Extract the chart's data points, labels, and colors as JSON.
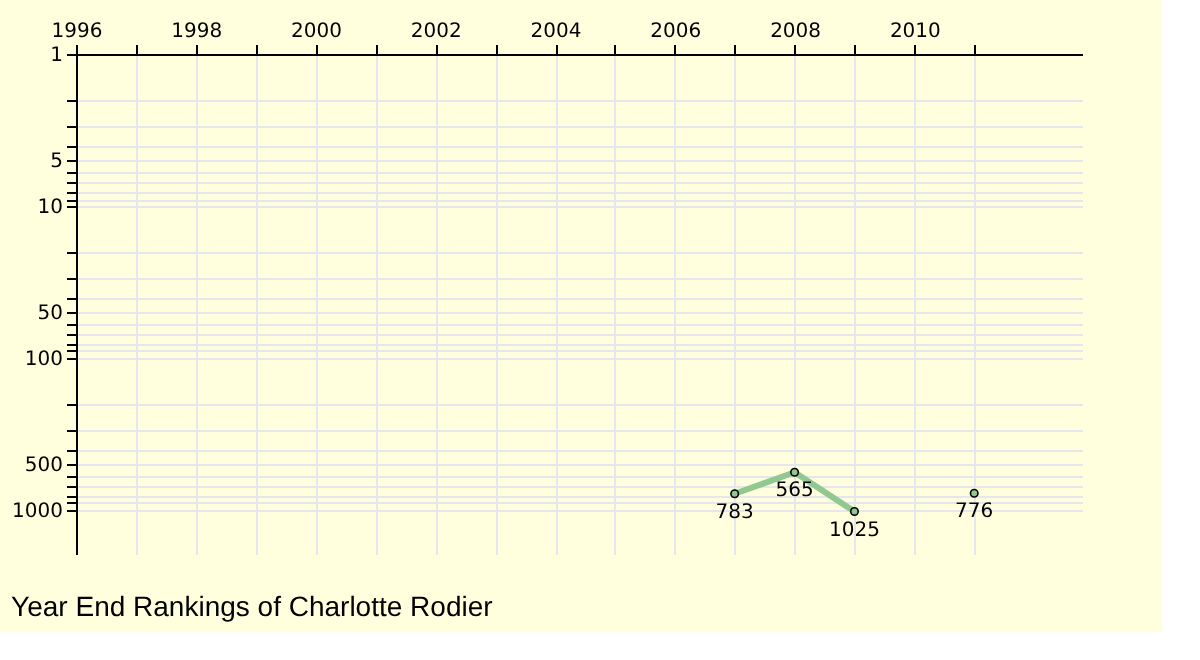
{
  "chart_data": {
    "type": "line",
    "title": "Year End Rankings of  Charlotte Rodier",
    "x": [
      2007,
      2008,
      2009,
      2010,
      2011
    ],
    "series": [
      {
        "color": "#90c890",
        "values": [
          783,
          565,
          1025,
          null,
          776
        ]
      }
    ],
    "xlim": [
      1996,
      2012.8
    ],
    "xticks": [
      1996,
      {
        "value": 1997,
        "label": null
      },
      1998,
      {
        "value": 1999,
        "label": null
      },
      2000,
      {
        "value": 2001,
        "label": null
      },
      2002,
      {
        "value": 2003,
        "label": null
      },
      2004,
      {
        "value": 2005,
        "label": null
      },
      2006,
      {
        "value": 2007,
        "label": null
      },
      2008,
      {
        "value": 2009,
        "label": null
      },
      2010,
      {
        "value": 2011,
        "label": null
      }
    ],
    "ylim": [
      1950,
      1
    ],
    "yticks": [
      1,
      {
        "value": 2,
        "label": null
      },
      {
        "value": 3,
        "label": null
      },
      {
        "value": 4,
        "label": null
      },
      5,
      {
        "value": 6,
        "label": null
      },
      {
        "value": 7,
        "label": null
      },
      {
        "value": 8,
        "label": null
      },
      {
        "value": 9,
        "label": null
      },
      10,
      {
        "value": 20,
        "label": null
      },
      {
        "value": 30,
        "label": null
      },
      {
        "value": 40,
        "label": null
      },
      50,
      {
        "value": 60,
        "label": null
      },
      {
        "value": 70,
        "label": null
      },
      {
        "value": 80,
        "label": null
      },
      {
        "value": 90,
        "label": null
      },
      100,
      {
        "value": 200,
        "label": null
      },
      {
        "value": 300,
        "label": null
      },
      {
        "value": 400,
        "label": null
      },
      500,
      {
        "value": 600,
        "label": null
      },
      {
        "value": 700,
        "label": null
      },
      {
        "value": 800,
        "label": null
      },
      {
        "value": 900,
        "label": null
      },
      1000
    ],
    "log": "y",
    "grid": true,
    "marker": "circle",
    "line_style": "solid",
    "data_labels": true,
    "legend": false
  }
}
